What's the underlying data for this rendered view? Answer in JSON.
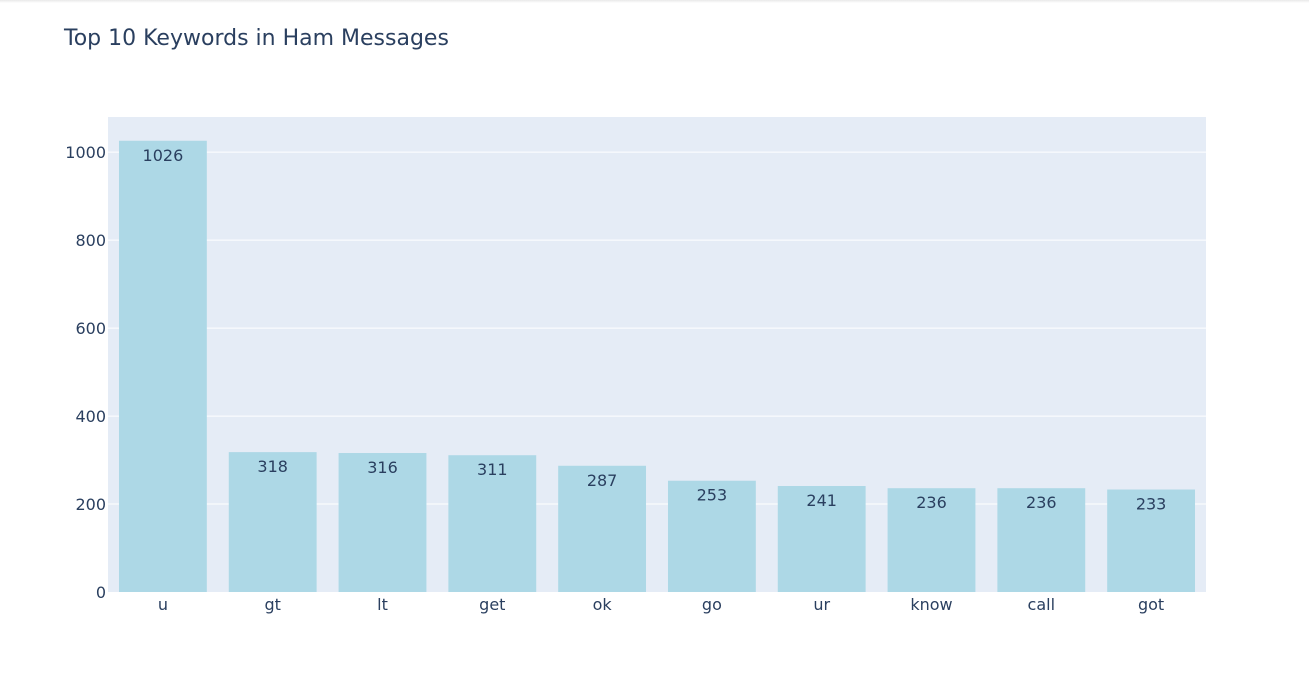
{
  "chart_data": {
    "type": "bar",
    "title": "Top 10 Keywords in Ham Messages",
    "xlabel": "",
    "ylabel": "",
    "categories": [
      "u",
      "gt",
      "lt",
      "get",
      "ok",
      "go",
      "ur",
      "know",
      "call",
      "got"
    ],
    "values": [
      1026,
      318,
      316,
      311,
      287,
      253,
      241,
      236,
      236,
      233
    ],
    "ylim": [
      0,
      1080
    ],
    "yticks": [
      0,
      200,
      400,
      600,
      800,
      1000
    ],
    "grid": true,
    "legend": "none",
    "colors": {
      "bar": "#add8e6",
      "plot_bg": "#e5ecf6",
      "grid": "#ffffff",
      "text": "#2a3f5f"
    }
  }
}
